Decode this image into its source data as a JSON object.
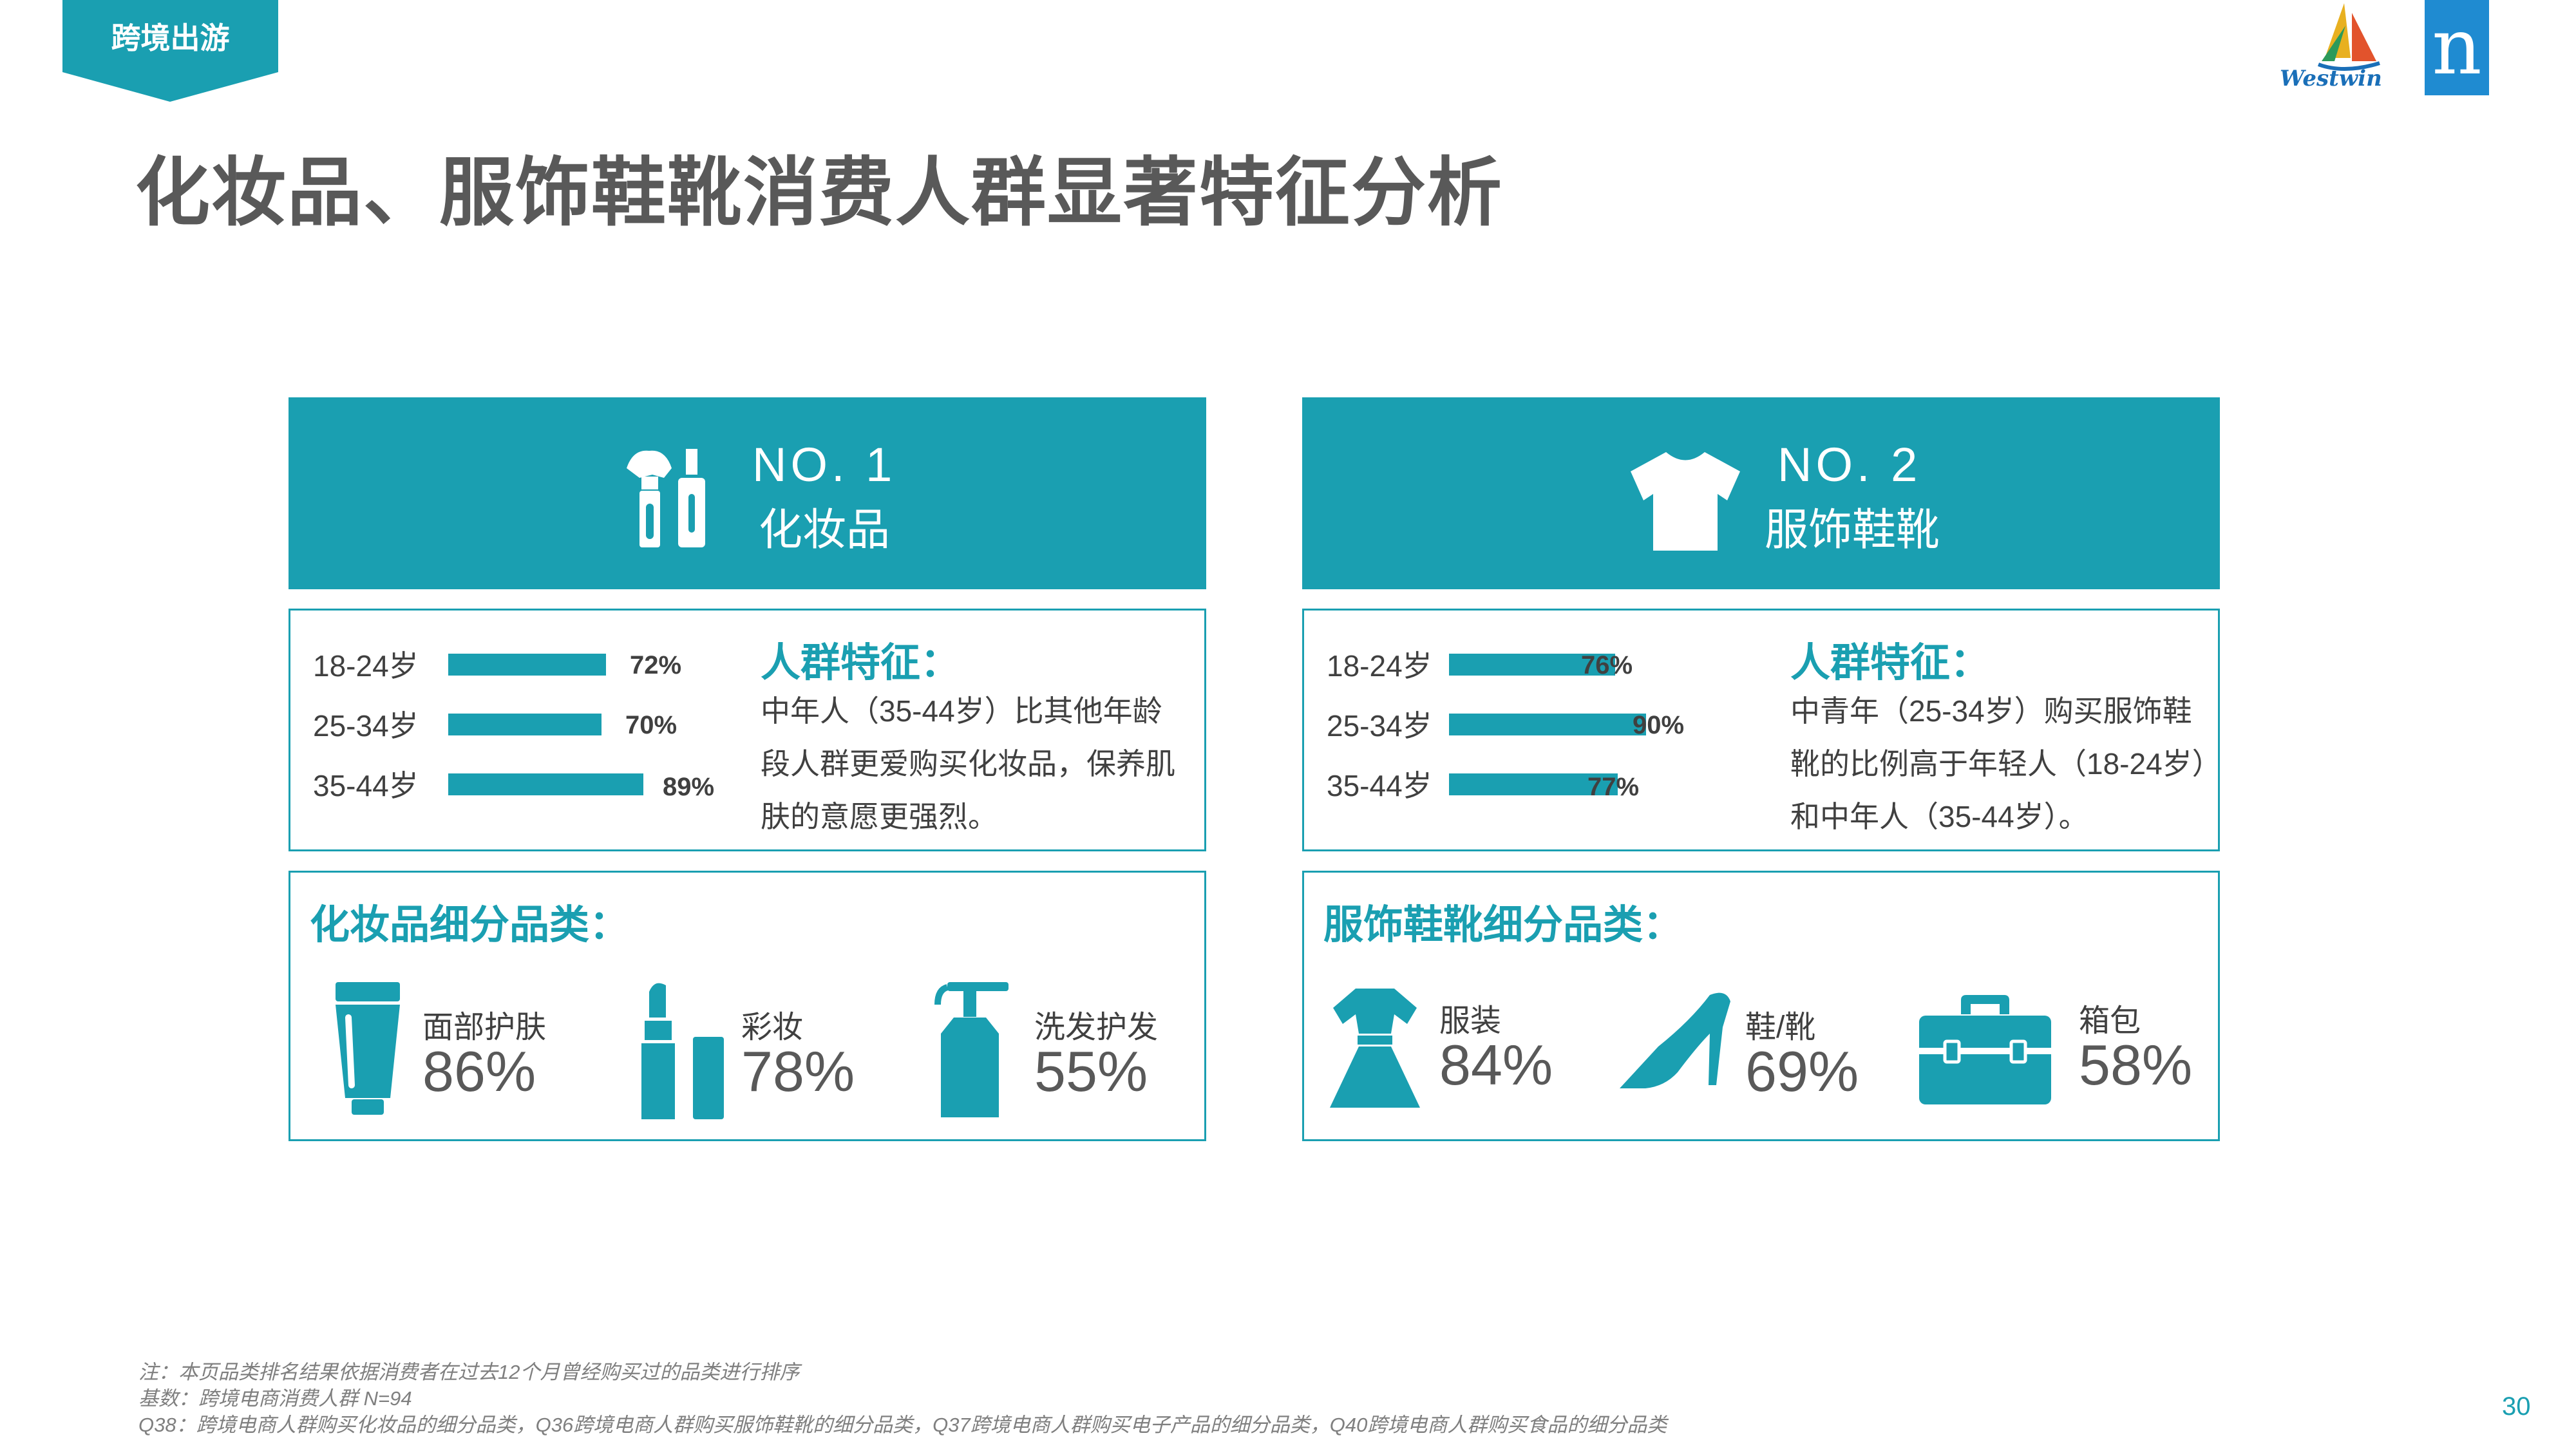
{
  "header": {
    "tag": "跨境出游",
    "title": "化妆品、服饰鞋靴消费人群显著特征分析",
    "logo_westwin": "Westwin",
    "logo_n": "n"
  },
  "panels": [
    {
      "rank": "NO. 1",
      "category": "化妆品",
      "icon": "cosmetics-icon",
      "ages": [
        {
          "label": "18-24岁",
          "value": "72%",
          "ratio": 0.72
        },
        {
          "label": "25-34岁",
          "value": "70%",
          "ratio": 0.7
        },
        {
          "label": "35-44岁",
          "value": "89%",
          "ratio": 0.89
        }
      ],
      "feature_title": "人群特征：",
      "feature_text": "中年人（35-44岁）比其他年龄段人群更爱购买化妆品，保养肌肤的意愿更强烈。",
      "sub_title": "化妆品细分品类：",
      "subs": [
        {
          "name": "面部护肤",
          "value": "86%",
          "icon": "face-cream-tube-icon"
        },
        {
          "name": "彩妆",
          "value": "78%",
          "icon": "lipstick-icon"
        },
        {
          "name": "洗发护发",
          "value": "55%",
          "icon": "shampoo-bottle-icon"
        }
      ]
    },
    {
      "rank": "NO. 2",
      "category": "服饰鞋靴",
      "icon": "tshirt-icon",
      "ages": [
        {
          "label": "18-24岁",
          "value": "76%",
          "ratio": 0.76
        },
        {
          "label": "25-34岁",
          "value": "90%",
          "ratio": 0.9
        },
        {
          "label": "35-44岁",
          "value": "77%",
          "ratio": 0.77
        }
      ],
      "feature_title": "人群特征：",
      "feature_text": "中青年（25-34岁）购买服饰鞋靴的比例高于年轻人（18-24岁）和中年人（35-44岁）。",
      "sub_title": "服饰鞋靴细分品类：",
      "subs": [
        {
          "name": "服装",
          "value": "84%",
          "icon": "dress-icon"
        },
        {
          "name": "鞋/靴",
          "value": "69%",
          "icon": "high-heel-icon"
        },
        {
          "name": "箱包",
          "value": "58%",
          "icon": "suitcase-icon"
        }
      ]
    }
  ],
  "footer": {
    "note1": "注：本页品类排名结果依据消费者在过去12个月曾经购买过的品类进行排序",
    "note2": "基数：跨境电商消费人群 N=94",
    "note3": "Q38：跨境电商人群购买化妆品的细分品类，Q36跨境电商人群购买服饰鞋靴的细分品类，Q37跨境电商人群购买电子产品的细分品类，Q40跨境电商人群购买食品的细分品类",
    "page": "30"
  },
  "colors": {
    "accent": "#1a9fb1",
    "text": "#595959"
  }
}
